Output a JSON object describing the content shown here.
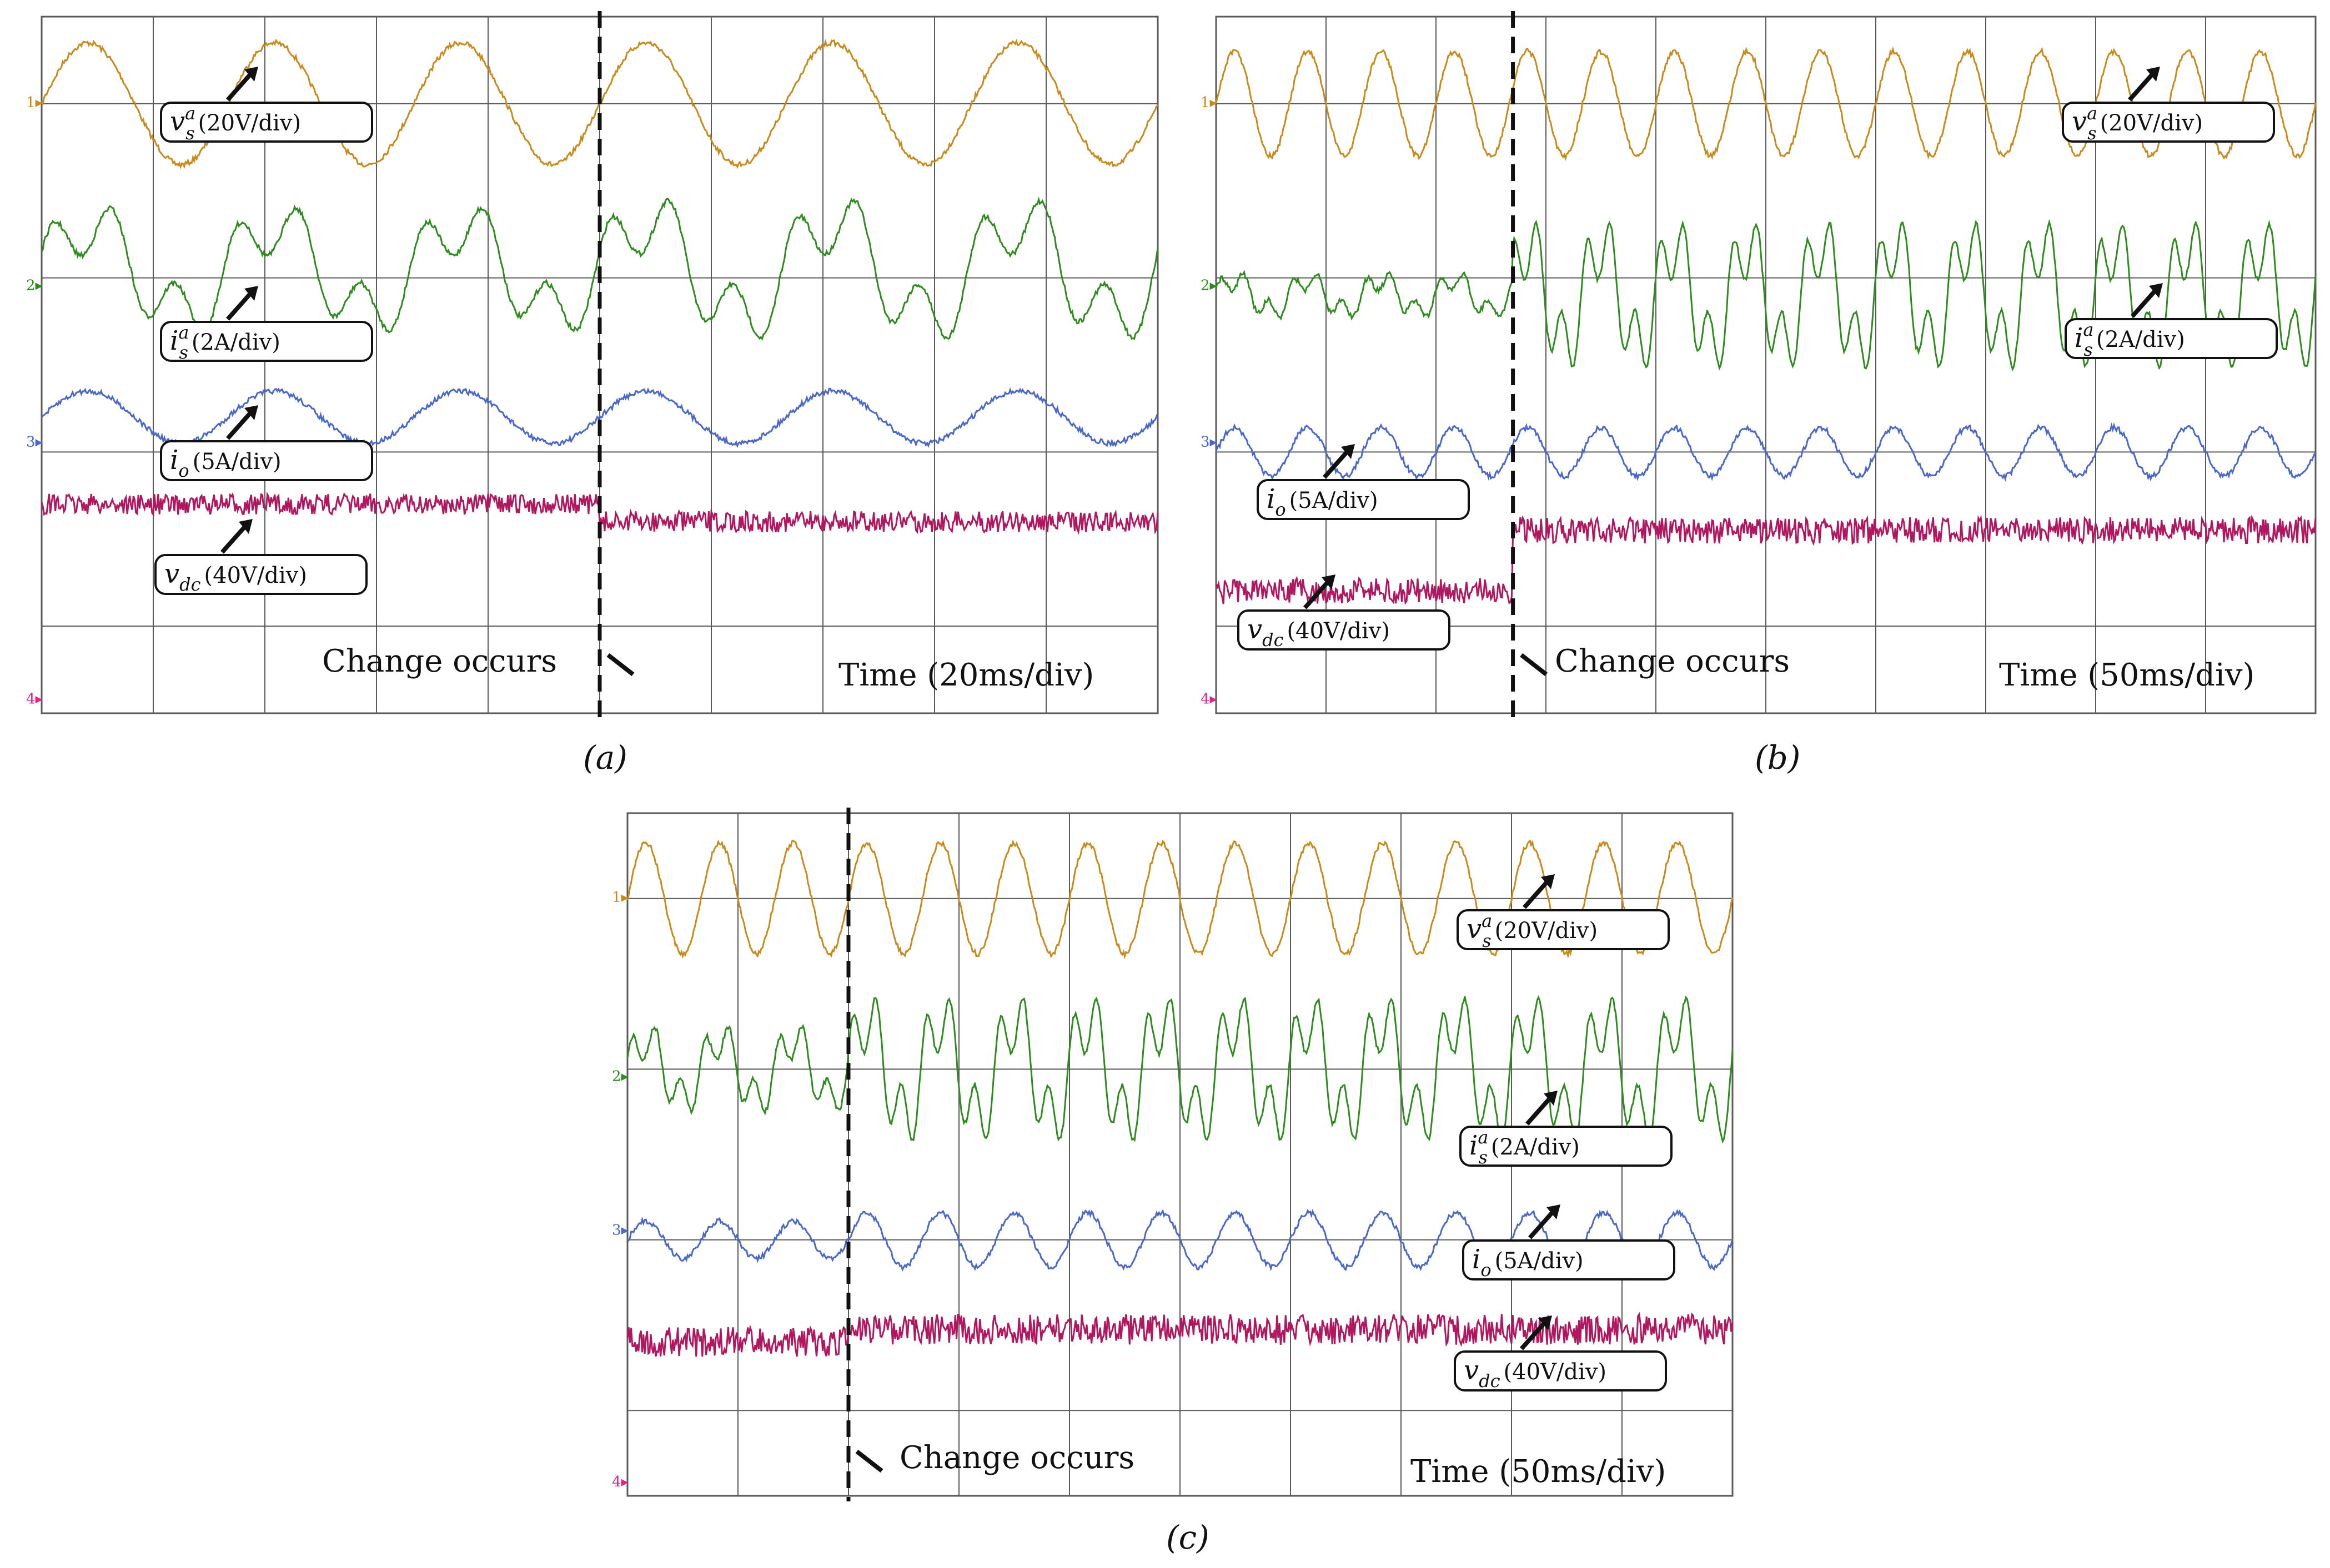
{
  "figure": {
    "colors": {
      "v_s": "#c98a1c",
      "i_s": "#2e8b1e",
      "i_o": "#4a68c8",
      "v_dc": "#b0175f",
      "grid": "#5a5a5a",
      "ch4_marker": "#e0218a"
    }
  },
  "chart_data": [
    {
      "type": "line",
      "panel_caption": "(a)",
      "time_label": "Time (20ms/div)",
      "event_label": "Change occurs",
      "divisions": {
        "x": 10,
        "y": 8
      },
      "channel_markers": [
        "1",
        "2",
        "3",
        "4"
      ],
      "change_at_div": 5.0,
      "series": [
        {
          "name": "v_s^a (20V/div)",
          "channel": 1,
          "cycles_per_div_before": 0.6,
          "cycles_per_div_after": 0.6,
          "amp_div_before": 0.7,
          "amp_div_after": 0.7,
          "offset_div": 1.0
        },
        {
          "name": "i_s^a (2A/div)",
          "channel": 2,
          "cycles_per_div_before": 0.6,
          "cycles_per_div_after": 0.6,
          "amp_div_before": 0.85,
          "amp_div_after": 0.95,
          "offset_div": 2.9
        },
        {
          "name": "i_o (5A/div)",
          "channel": 3,
          "cycles_per_div_before": 0.6,
          "cycles_per_div_after": 0.6,
          "amp_div_before": 0.3,
          "amp_div_after": 0.3,
          "offset_div": 4.6
        },
        {
          "name": "v_dc (40V/div)",
          "channel": 4,
          "level_div_before": 5.6,
          "level_div_after": 5.8,
          "ripple_div": 0.12
        }
      ],
      "labels": [
        {
          "text": "v_s^a (20V/div)",
          "series": "v_s"
        },
        {
          "text": "i_s^a (2A/div)",
          "series": "i_s"
        },
        {
          "text": "i_o (5A/div)",
          "series": "i_o"
        },
        {
          "text": "v_dc (40V/div)",
          "series": "v_dc"
        }
      ]
    },
    {
      "type": "line",
      "panel_caption": "(b)",
      "time_label": "Time (50ms/div)",
      "event_label": "Change occurs",
      "divisions": {
        "x": 10,
        "y": 8
      },
      "channel_markers": [
        "1",
        "2",
        "3",
        "4"
      ],
      "change_at_div": 2.7,
      "series": [
        {
          "name": "v_s^a (20V/div)",
          "channel": 1,
          "cycles_per_div_before": 1.5,
          "cycles_per_div_after": 1.5,
          "amp_div_before": 0.6,
          "amp_div_after": 0.6,
          "offset_div": 1.0
        },
        {
          "name": "i_s^a (2A/div)",
          "channel": 2,
          "cycles_per_div_before": 1.5,
          "cycles_per_div_after": 1.5,
          "amp_div_before": 0.3,
          "amp_div_after": 1.0,
          "offset_div": 3.2
        },
        {
          "name": "i_o (5A/div)",
          "channel": 3,
          "cycles_per_div_before": 1.5,
          "cycles_per_div_after": 1.5,
          "amp_div_before": 0.28,
          "amp_div_after": 0.28,
          "offset_div": 5.0
        },
        {
          "name": "v_dc (40V/div)",
          "channel": 4,
          "level_div_before": 6.6,
          "level_div_after": 5.9,
          "ripple_div": 0.15
        }
      ],
      "labels": [
        {
          "text": "v_s^a (20V/div)",
          "series": "v_s"
        },
        {
          "text": "i_s^a (2A/div)",
          "series": "i_s"
        },
        {
          "text": "i_o (5A/div)",
          "series": "i_o"
        },
        {
          "text": "v_dc (40V/div)",
          "series": "v_dc"
        }
      ]
    },
    {
      "type": "line",
      "panel_caption": "(c)",
      "time_label": "Time (50ms/div)",
      "event_label": "Change occurs",
      "divisions": {
        "x": 10,
        "y": 8
      },
      "channel_markers": [
        "1",
        "2",
        "3",
        "4"
      ],
      "change_at_div": 2.0,
      "series": [
        {
          "name": "v_s^a (20V/div)",
          "channel": 1,
          "cycles_per_div_before": 1.5,
          "cycles_per_div_after": 1.5,
          "amp_div_before": 0.65,
          "amp_div_after": 0.65,
          "offset_div": 1.0
        },
        {
          "name": "i_s^a (2A/div)",
          "channel": 2,
          "cycles_per_div_before": 1.5,
          "cycles_per_div_after": 1.5,
          "amp_div_before": 0.6,
          "amp_div_after": 1.0,
          "offset_div": 3.0
        },
        {
          "name": "i_o (5A/div)",
          "channel": 3,
          "cycles_per_div_before": 1.5,
          "cycles_per_div_after": 1.5,
          "amp_div_before": 0.22,
          "amp_div_after": 0.32,
          "offset_div": 5.0
        },
        {
          "name": "v_dc (40V/div)",
          "channel": 4,
          "level_div_before": 6.2,
          "level_div_after": 6.05,
          "ripple_div": 0.18
        }
      ],
      "labels": [
        {
          "text": "v_s^a (20V/div)",
          "series": "v_s"
        },
        {
          "text": "i_s^a (2A/div)",
          "series": "i_s"
        },
        {
          "text": "i_o (5A/div)",
          "series": "i_o"
        },
        {
          "text": "v_dc (40V/div)",
          "series": "v_dc"
        }
      ]
    }
  ]
}
